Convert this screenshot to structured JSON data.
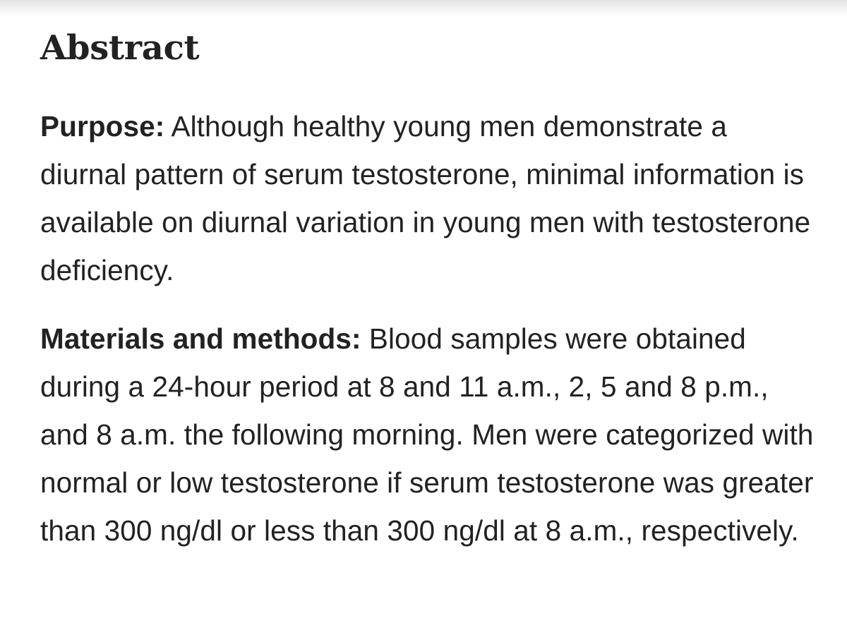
{
  "abstract": {
    "title": "Abstract",
    "sections": [
      {
        "label": "Purpose:",
        "text": "Although healthy young men demonstrate a diurnal pattern of serum testosterone, minimal information is available on diurnal variation in young men with testosterone deficiency."
      },
      {
        "label": "Materials and methods:",
        "text": "Blood samples were obtained during a 24-hour period at 8 and 11 a.m., 2, 5 and 8 p.m., and 8 a.m. the following morning. Men were categorized with normal or low testosterone if serum testosterone was greater than 300 ng/dl or less than 300 ng/dl at 8 a.m., respectively."
      }
    ]
  }
}
